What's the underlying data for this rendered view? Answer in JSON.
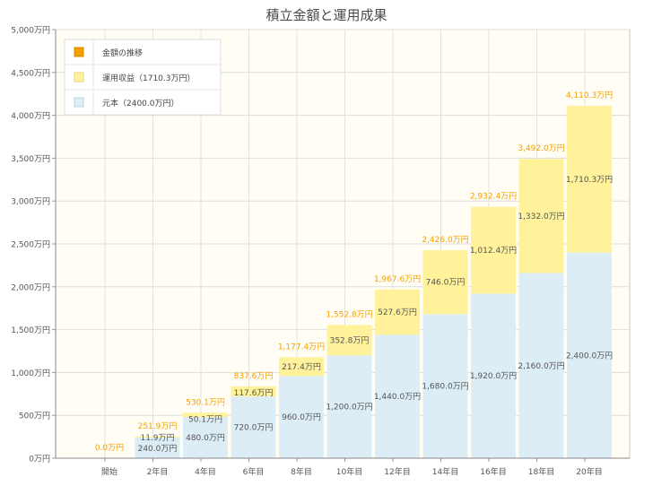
{
  "chart_data": {
    "type": "bar",
    "title": "積立金額と運用成果",
    "categories": [
      "開始",
      "2年目",
      "4年目",
      "6年目",
      "8年目",
      "10年目",
      "12年目",
      "14年目",
      "16年目",
      "18年目",
      "20年目"
    ],
    "series": [
      {
        "name": "元本（2400.0万円）",
        "color": "#dcedf6",
        "values": [
          0,
          240.0,
          480.0,
          720.0,
          960.0,
          1200.0,
          1440.0,
          1680.0,
          1920.0,
          2160.0,
          2400.0
        ],
        "labels": [
          "",
          "240.0万円",
          "480.0万円",
          "720.0万円",
          "960.0万円",
          "1,200.0万円",
          "1,440.0万円",
          "1,680.0万円",
          "1,920.0万円",
          "2,160.0万円",
          "2,400.0万円"
        ]
      },
      {
        "name": "運用収益（1710.3万円）",
        "color": "#fff29a",
        "values": [
          0,
          11.9,
          50.1,
          117.6,
          217.4,
          352.8,
          527.6,
          746.0,
          1012.4,
          1332.0,
          1710.3
        ],
        "labels": [
          "",
          "11.9万円",
          "50.1万円",
          "117.6万円",
          "217.4万円",
          "352.8万円",
          "527.6万円",
          "746.0万円",
          "1,012.4万円",
          "1,332.0万円",
          "1,710.3万円"
        ]
      }
    ],
    "totals": {
      "name": "金額の推移",
      "color": "#f5a100",
      "values": [
        0.0,
        251.9,
        530.1,
        837.6,
        1177.4,
        1552.8,
        1967.6,
        2426.0,
        2932.4,
        3492.0,
        4110.3
      ],
      "labels": [
        "0.0万円",
        "251.9万円",
        "530.1万円",
        "837.6万円",
        "1,177.4万円",
        "1,552.8万円",
        "1,967.6万円",
        "2,426.0万円",
        "2,932.4万円",
        "3,492.0万円",
        "4,110.3万円"
      ]
    },
    "y_ticks": [
      0,
      500,
      1000,
      1500,
      2000,
      2500,
      3000,
      3500,
      4000,
      4500,
      5000
    ],
    "y_tick_labels": [
      "0万円",
      "500万円",
      "1,000万円",
      "1,500万円",
      "2,000万円",
      "2,500万円",
      "3,000万円",
      "3,500万円",
      "4,000万円",
      "4,500万円",
      "5,000万円"
    ],
    "ylim": [
      0,
      5000
    ],
    "grid": true,
    "legend_position": "top-left",
    "legend_order": [
      "金額の推移",
      "運用収益（1710.3万円）",
      "元本（2400.0万円）"
    ]
  }
}
